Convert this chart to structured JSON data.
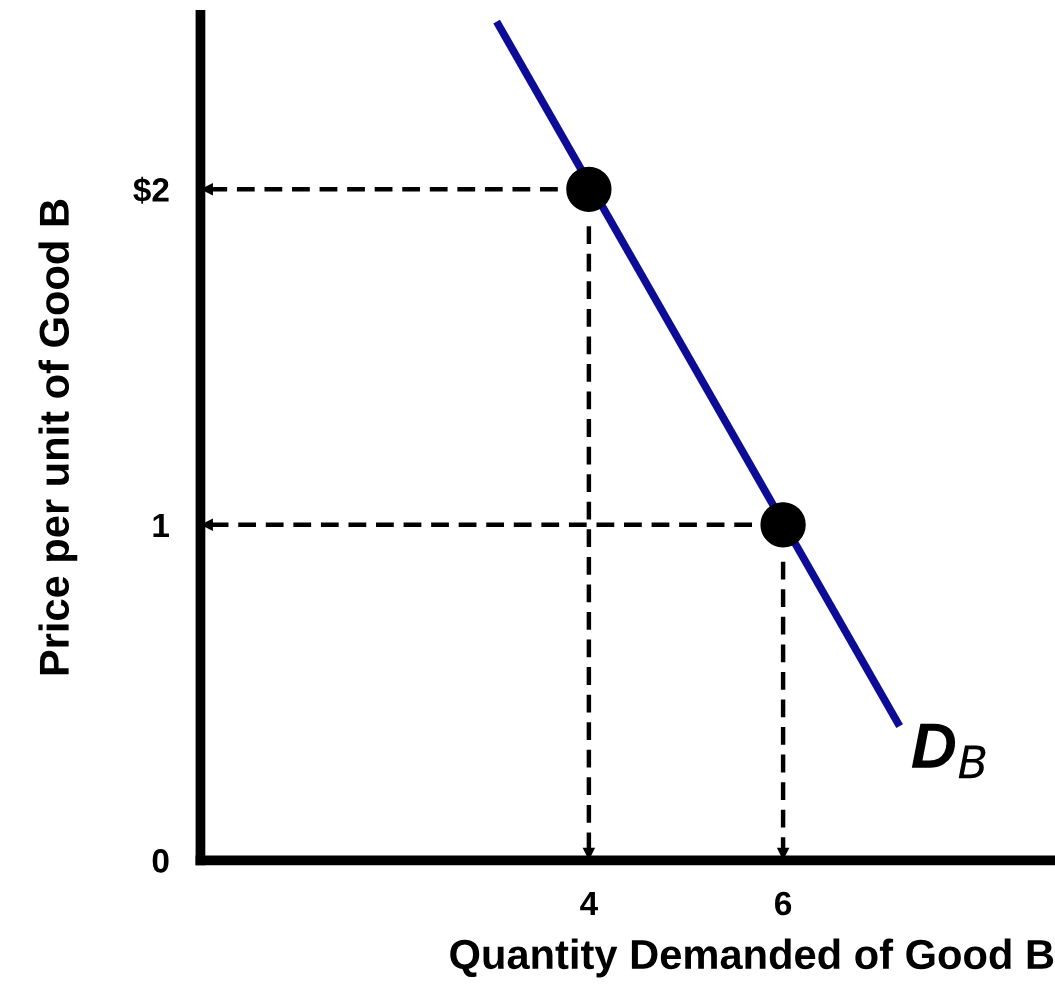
{
  "chart_data": {
    "type": "line",
    "xlabel": "Quantity Demanded of Good B",
    "ylabel": "Price per unit of Good B",
    "xlim": [
      0,
      8.8
    ],
    "ylim": [
      0,
      2.52
    ],
    "xticks": [
      4,
      6
    ],
    "yticks": [
      0,
      1,
      {
        "value": 2,
        "label": "$2"
      }
    ],
    "grid": false,
    "legend": false,
    "series": [
      {
        "color": "#0c0c96",
        "x": [
          3.05,
          7.2
        ],
        "values": [
          2.5,
          0.4
        ]
      },
      {
        "color": "#000000",
        "line_style": "dashed",
        "x": [
          3.68,
          0
        ],
        "values": [
          2,
          2
        ]
      },
      {
        "color": "#000000",
        "line_style": "dashed",
        "x": [
          5.68,
          0
        ],
        "values": [
          1,
          1
        ]
      },
      {
        "color": "#000000",
        "line_style": "dashed",
        "x": [
          4,
          4
        ],
        "values": [
          1.89,
          0
        ]
      },
      {
        "color": "#000000",
        "line_style": "dashed",
        "x": [
          6,
          6
        ],
        "values": [
          0.89,
          0
        ]
      },
      {
        "type": "scatter",
        "color": "#000000",
        "marker": "circle",
        "x": [
          4,
          6
        ],
        "values": [
          2,
          1
        ]
      }
    ],
    "annotations": [
      {
        "text": "D$_{B}$",
        "x": 7.2,
        "y": 0.4
      }
    ]
  }
}
